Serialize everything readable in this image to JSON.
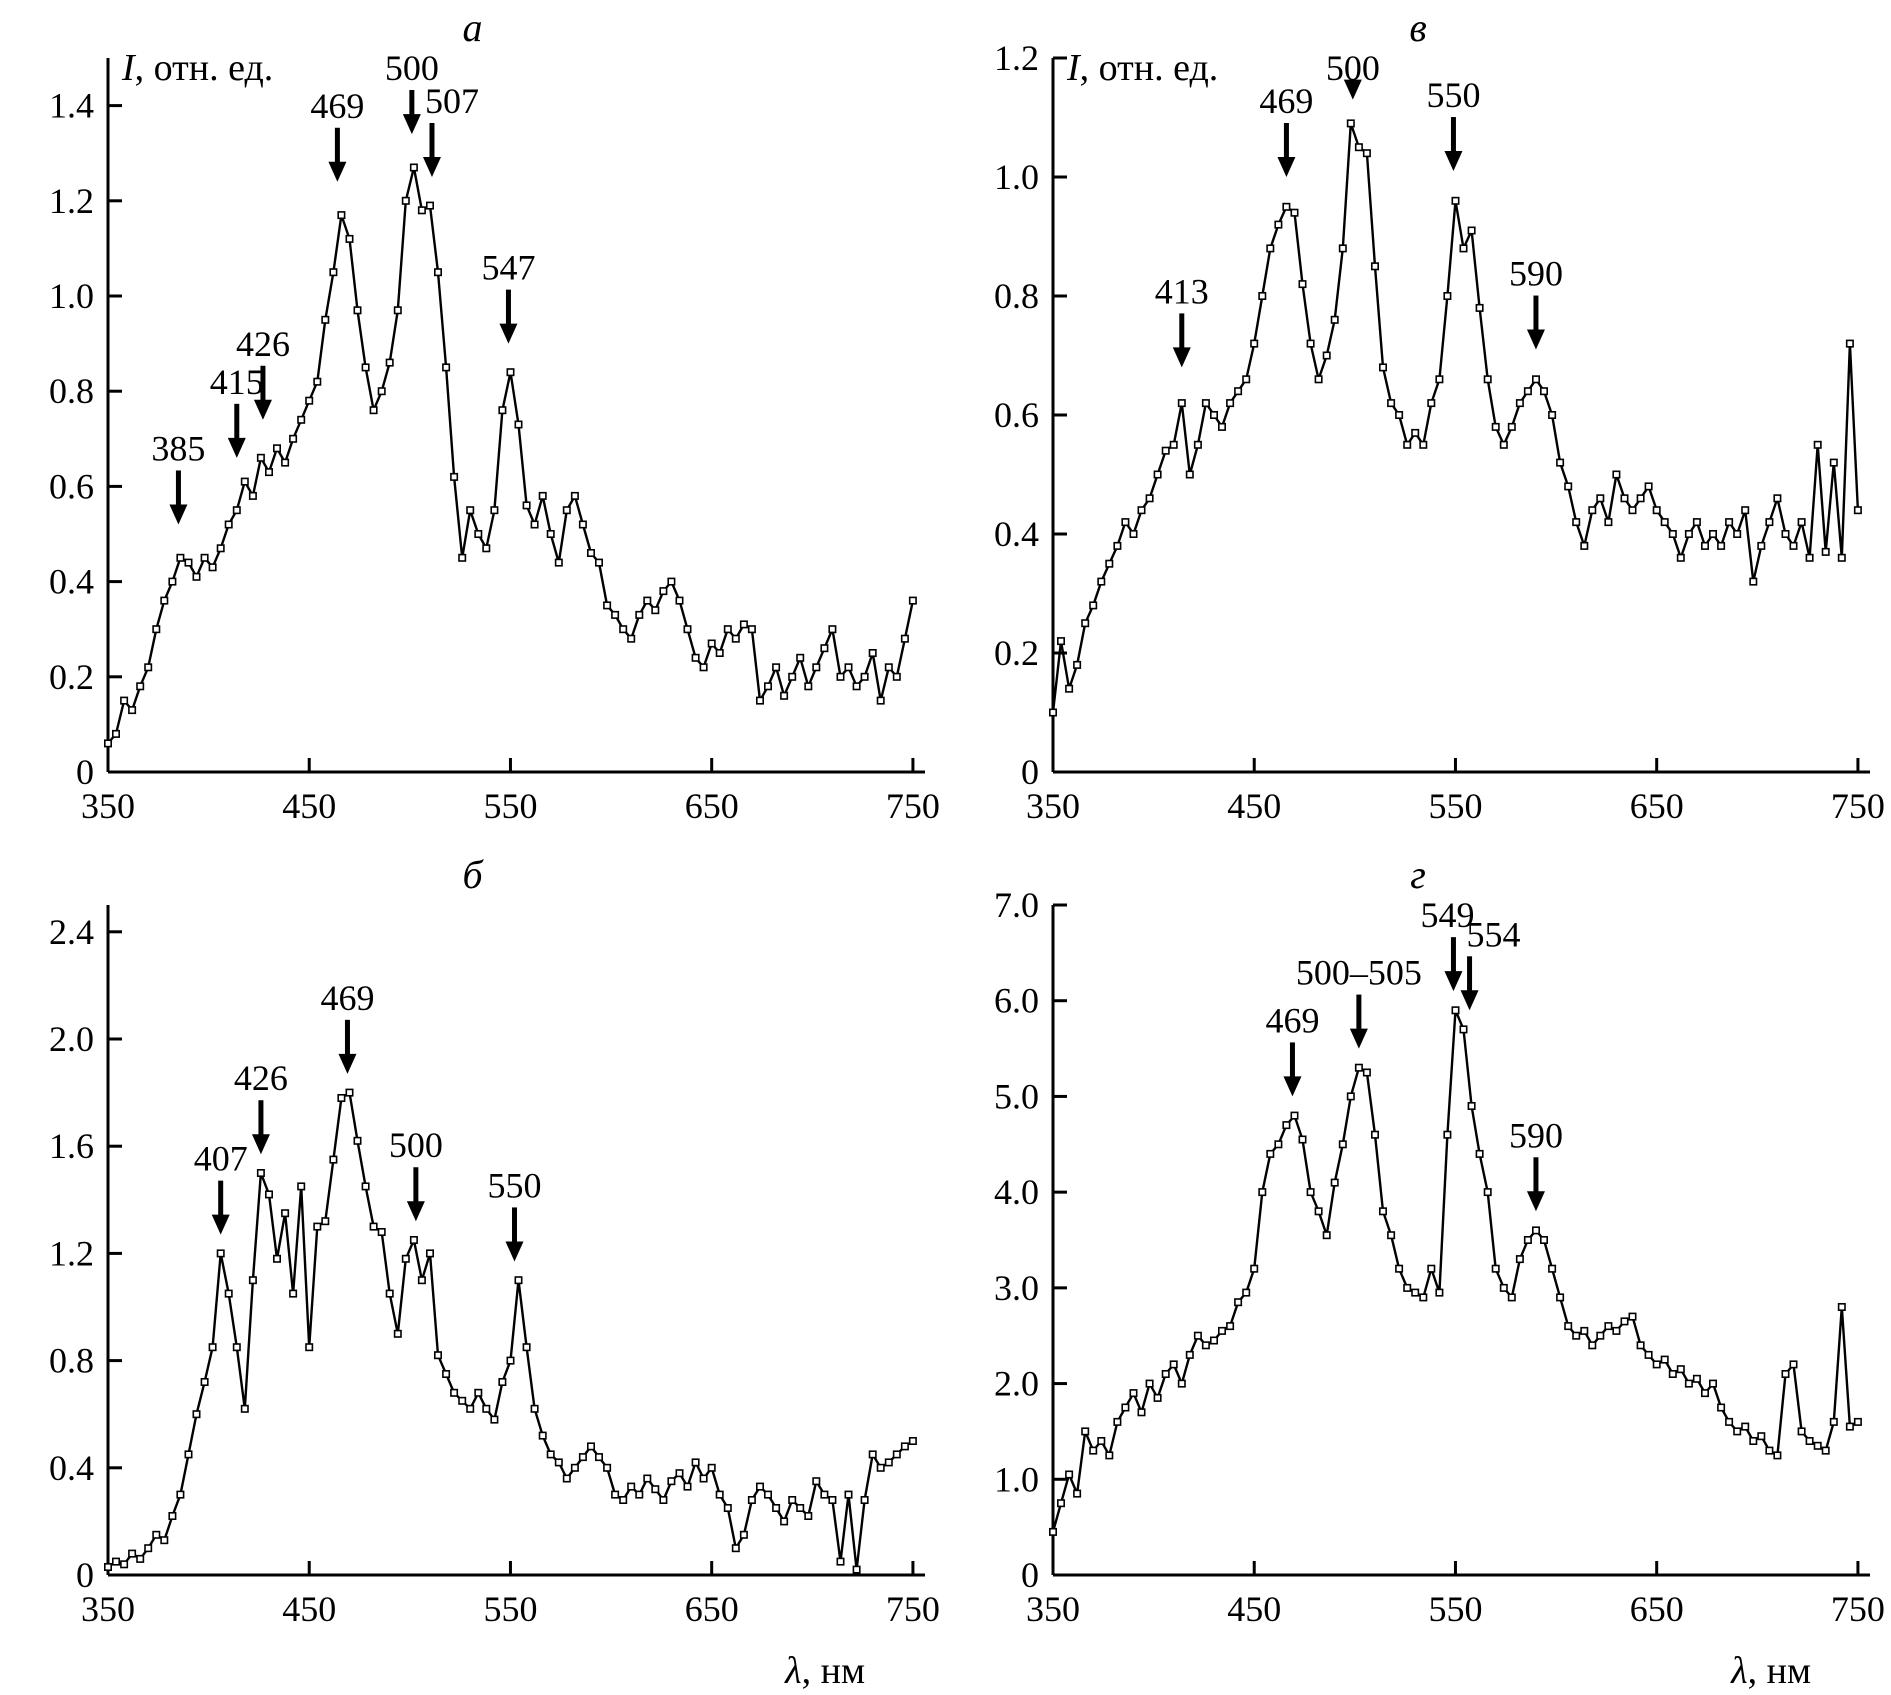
{
  "figure": {
    "background": "#ffffff",
    "line_color": "#000000",
    "marker": "open-square"
  },
  "chart_data": [
    {
      "type": "line",
      "title": "а",
      "ylabel_sym": "I",
      "ylabel_rest": ", отн. ед.",
      "x_start": 350,
      "x_step": 4,
      "xlim": [
        350,
        756
      ],
      "ylim": [
        0,
        1.5
      ],
      "xticks": [
        350,
        450,
        550,
        650,
        750
      ],
      "yticks": [
        0,
        0.2,
        0.4,
        0.6,
        0.8,
        1.0,
        1.2,
        1.4
      ],
      "ytick_labels": [
        "0",
        "0.2",
        "0.4",
        "0.6",
        "0.8",
        "1.0",
        "1.2",
        "1.4"
      ],
      "values": [
        0.06,
        0.08,
        0.15,
        0.13,
        0.18,
        0.22,
        0.3,
        0.36,
        0.4,
        0.45,
        0.44,
        0.41,
        0.45,
        0.43,
        0.47,
        0.52,
        0.55,
        0.61,
        0.58,
        0.66,
        0.63,
        0.68,
        0.65,
        0.7,
        0.74,
        0.78,
        0.82,
        0.95,
        1.05,
        1.17,
        1.12,
        0.97,
        0.85,
        0.76,
        0.8,
        0.86,
        0.97,
        1.2,
        1.27,
        1.18,
        1.19,
        1.05,
        0.85,
        0.62,
        0.45,
        0.55,
        0.5,
        0.47,
        0.55,
        0.76,
        0.84,
        0.73,
        0.56,
        0.52,
        0.58,
        0.5,
        0.44,
        0.55,
        0.58,
        0.52,
        0.46,
        0.44,
        0.35,
        0.33,
        0.3,
        0.28,
        0.33,
        0.36,
        0.34,
        0.38,
        0.4,
        0.36,
        0.3,
        0.24,
        0.22,
        0.27,
        0.25,
        0.3,
        0.28,
        0.31,
        0.3,
        0.15,
        0.18,
        0.22,
        0.16,
        0.2,
        0.24,
        0.18,
        0.22,
        0.26,
        0.3,
        0.2,
        0.22,
        0.18,
        0.2,
        0.25,
        0.15,
        0.22,
        0.2,
        0.28,
        0.36
      ],
      "annotations": [
        {
          "label": "385",
          "x": 385,
          "y": 0.52
        },
        {
          "label": "415",
          "x": 414,
          "y": 0.66
        },
        {
          "label": "426",
          "x": 427,
          "y": 0.74
        },
        {
          "label": "469",
          "x": 464,
          "y": 1.24
        },
        {
          "label": "500",
          "x": 501,
          "y": 1.34
        },
        {
          "label": "507",
          "x": 511,
          "y": 1.25,
          "dx": 20
        },
        {
          "label": "547",
          "x": 549,
          "y": 0.9
        }
      ]
    },
    {
      "type": "line",
      "title": "в",
      "ylabel_sym": "I",
      "ylabel_rest": ", отн. ед.",
      "x_start": 350,
      "x_step": 4,
      "xlim": [
        350,
        756
      ],
      "ylim": [
        0,
        1.2
      ],
      "xticks": [
        350,
        450,
        550,
        650,
        750
      ],
      "yticks": [
        0,
        0.2,
        0.4,
        0.6,
        0.8,
        1.0,
        1.2
      ],
      "ytick_labels": [
        "0",
        "0.2",
        "0.4",
        "0.6",
        "0.8",
        "1.0",
        "1.2"
      ],
      "values": [
        0.1,
        0.22,
        0.14,
        0.18,
        0.25,
        0.28,
        0.32,
        0.35,
        0.38,
        0.42,
        0.4,
        0.44,
        0.46,
        0.5,
        0.54,
        0.55,
        0.62,
        0.5,
        0.55,
        0.62,
        0.6,
        0.58,
        0.62,
        0.64,
        0.66,
        0.72,
        0.8,
        0.88,
        0.92,
        0.95,
        0.94,
        0.82,
        0.72,
        0.66,
        0.7,
        0.76,
        0.88,
        1.09,
        1.05,
        1.04,
        0.85,
        0.68,
        0.62,
        0.6,
        0.55,
        0.57,
        0.55,
        0.62,
        0.66,
        0.8,
        0.96,
        0.88,
        0.91,
        0.78,
        0.66,
        0.58,
        0.55,
        0.58,
        0.62,
        0.64,
        0.66,
        0.64,
        0.6,
        0.52,
        0.48,
        0.42,
        0.38,
        0.44,
        0.46,
        0.42,
        0.5,
        0.46,
        0.44,
        0.46,
        0.48,
        0.44,
        0.42,
        0.4,
        0.36,
        0.4,
        0.42,
        0.38,
        0.4,
        0.38,
        0.42,
        0.4,
        0.44,
        0.32,
        0.38,
        0.42,
        0.46,
        0.4,
        0.38,
        0.42,
        0.36,
        0.55,
        0.37,
        0.52,
        0.36,
        0.72,
        0.44
      ],
      "annotations": [
        {
          "label": "413",
          "x": 414,
          "y": 0.68
        },
        {
          "label": "469",
          "x": 466,
          "y": 1.0
        },
        {
          "label": "500",
          "x": 499,
          "y": 1.13
        },
        {
          "label": "550",
          "x": 549,
          "y": 1.01
        },
        {
          "label": "590",
          "x": 590,
          "y": 0.71
        }
      ]
    },
    {
      "type": "line",
      "title": "б",
      "xlabel_sym": "λ",
      "xlabel_rest": ", нм",
      "x_start": 350,
      "x_step": 4,
      "xlim": [
        350,
        756
      ],
      "ylim": [
        0,
        2.5
      ],
      "xticks": [
        350,
        450,
        550,
        650,
        750
      ],
      "yticks": [
        0,
        0.4,
        0.8,
        1.2,
        1.6,
        2.0,
        2.4
      ],
      "ytick_labels": [
        "0",
        "0.4",
        "0.8",
        "1.2",
        "1.6",
        "2.0",
        "2.4"
      ],
      "values": [
        0.03,
        0.05,
        0.04,
        0.08,
        0.06,
        0.1,
        0.15,
        0.13,
        0.22,
        0.3,
        0.45,
        0.6,
        0.72,
        0.85,
        1.2,
        1.05,
        0.85,
        0.62,
        1.1,
        1.5,
        1.42,
        1.18,
        1.35,
        1.05,
        1.45,
        0.85,
        1.3,
        1.32,
        1.55,
        1.78,
        1.8,
        1.62,
        1.45,
        1.3,
        1.28,
        1.05,
        0.9,
        1.18,
        1.25,
        1.1,
        1.2,
        0.82,
        0.75,
        0.68,
        0.65,
        0.62,
        0.68,
        0.62,
        0.58,
        0.72,
        0.8,
        1.1,
        0.85,
        0.62,
        0.52,
        0.45,
        0.42,
        0.36,
        0.4,
        0.44,
        0.48,
        0.44,
        0.4,
        0.3,
        0.28,
        0.33,
        0.3,
        0.36,
        0.32,
        0.28,
        0.35,
        0.38,
        0.33,
        0.42,
        0.36,
        0.4,
        0.3,
        0.25,
        0.1,
        0.15,
        0.28,
        0.33,
        0.3,
        0.25,
        0.2,
        0.28,
        0.25,
        0.22,
        0.35,
        0.3,
        0.28,
        0.05,
        0.3,
        0.02,
        0.28,
        0.45,
        0.4,
        0.42,
        0.45,
        0.48,
        0.5
      ],
      "annotations": [
        {
          "label": "407",
          "x": 406,
          "y": 1.27
        },
        {
          "label": "426",
          "x": 426,
          "y": 1.57
        },
        {
          "label": "469",
          "x": 469,
          "y": 1.87
        },
        {
          "label": "500",
          "x": 503,
          "y": 1.32
        },
        {
          "label": "550",
          "x": 552,
          "y": 1.17
        }
      ]
    },
    {
      "type": "line",
      "title": "г",
      "xlabel_sym": "λ",
      "xlabel_rest": ", нм",
      "x_start": 350,
      "x_step": 4,
      "xlim": [
        350,
        756
      ],
      "ylim": [
        0,
        7.0
      ],
      "xticks": [
        350,
        450,
        550,
        650,
        750
      ],
      "yticks": [
        0,
        1.0,
        2.0,
        3.0,
        4.0,
        5.0,
        6.0,
        7.0
      ],
      "ytick_labels": [
        "0",
        "1.0",
        "2.0",
        "3.0",
        "4.0",
        "5.0",
        "6.0",
        "7.0"
      ],
      "values": [
        0.45,
        0.75,
        1.05,
        0.85,
        1.5,
        1.3,
        1.4,
        1.25,
        1.6,
        1.75,
        1.9,
        1.7,
        2.0,
        1.85,
        2.1,
        2.2,
        2.0,
        2.3,
        2.5,
        2.4,
        2.45,
        2.55,
        2.6,
        2.85,
        2.95,
        3.2,
        4.0,
        4.4,
        4.5,
        4.7,
        4.8,
        4.55,
        4.0,
        3.8,
        3.55,
        4.1,
        4.5,
        5.0,
        5.3,
        5.25,
        4.6,
        3.8,
        3.55,
        3.2,
        3.0,
        2.95,
        2.9,
        3.2,
        2.95,
        4.6,
        5.9,
        5.7,
        4.9,
        4.4,
        4.0,
        3.2,
        3.0,
        2.9,
        3.3,
        3.5,
        3.6,
        3.5,
        3.2,
        2.9,
        2.6,
        2.5,
        2.55,
        2.4,
        2.5,
        2.6,
        2.55,
        2.65,
        2.7,
        2.4,
        2.3,
        2.2,
        2.25,
        2.1,
        2.15,
        2.0,
        2.05,
        1.9,
        2.0,
        1.75,
        1.6,
        1.5,
        1.55,
        1.4,
        1.45,
        1.3,
        1.25,
        2.1,
        2.2,
        1.5,
        1.4,
        1.35,
        1.3,
        1.6,
        2.8,
        1.55,
        1.6
      ],
      "annotations": [
        {
          "label": "469",
          "x": 469,
          "y": 5.0
        },
        {
          "label": "500–505",
          "x": 502,
          "y": 5.5
        },
        {
          "label": "549",
          "x": 549,
          "y": 6.1,
          "dx": -6
        },
        {
          "label": "554",
          "x": 557,
          "y": 5.9,
          "dx": 24
        },
        {
          "label": "590",
          "x": 590,
          "y": 3.8
        }
      ]
    }
  ]
}
